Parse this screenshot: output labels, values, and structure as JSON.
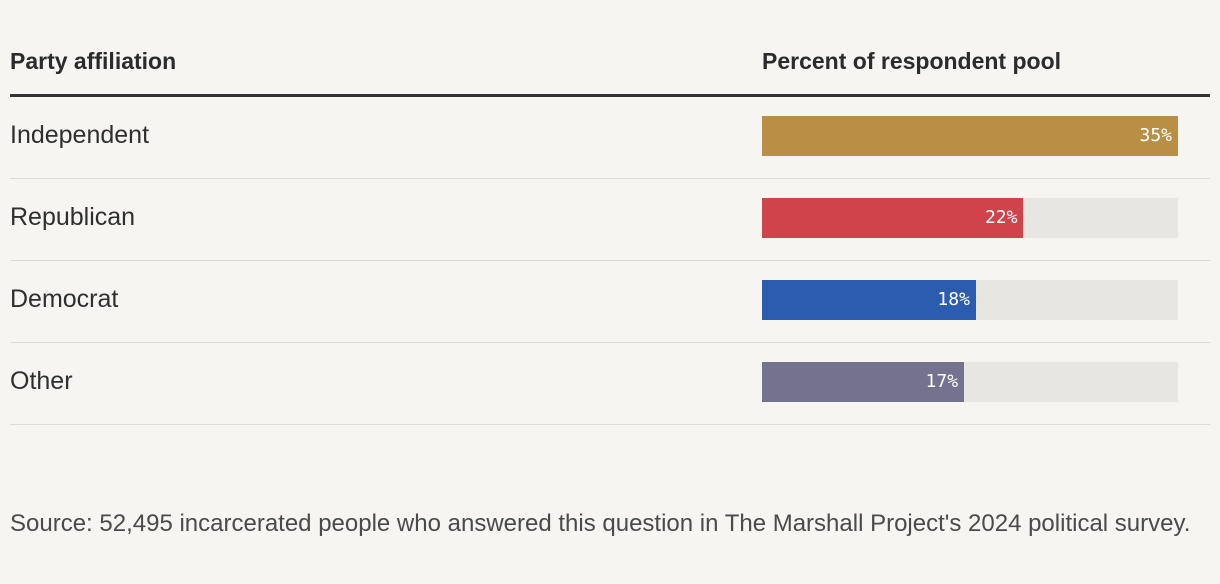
{
  "header": {
    "left_label": "Party affiliation",
    "right_label": "Percent of respondent pool"
  },
  "chart_data": {
    "type": "bar",
    "orientation": "horizontal",
    "categories": [
      "Independent",
      "Republican",
      "Democrat",
      "Other"
    ],
    "values": [
      35,
      22,
      18,
      17
    ],
    "value_labels": [
      "35%",
      "22%",
      "18%",
      "17%"
    ],
    "colors": [
      "#b88f45",
      "#d0434b",
      "#2b5cb0",
      "#75728f"
    ],
    "xlim": [
      0,
      35
    ],
    "unit": "%",
    "grid": false,
    "legend": "none"
  },
  "rows": [
    {
      "label": "Independent",
      "value_label": "35%"
    },
    {
      "label": "Republican",
      "value_label": "22%"
    },
    {
      "label": "Democrat",
      "value_label": "18%"
    },
    {
      "label": "Other",
      "value_label": "17%"
    }
  ],
  "source": "Source: 52,495 incarcerated people who answered this question in The Marshall Project's 2024 political survey."
}
